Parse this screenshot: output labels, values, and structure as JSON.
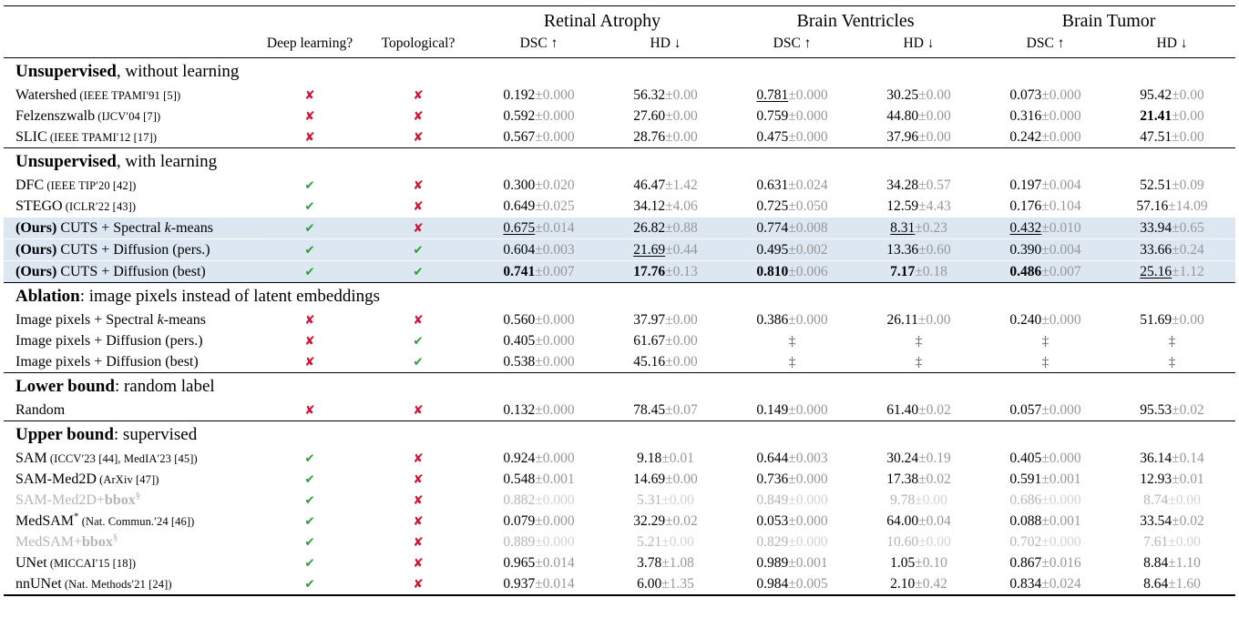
{
  "table": {
    "columns": {
      "deep_learning": "Deep learning?",
      "topological": "Topological?"
    },
    "groups": [
      "Retinal Atrophy",
      "Brain Ventricles",
      "Brain Tumor"
    ],
    "metrics": {
      "dsc": "DSC ↑",
      "hd": "HD ↓"
    },
    "marks": {
      "yes": "✔",
      "no": "✘",
      "na": "‡"
    },
    "colors": {
      "check_green": "#2f9e3a",
      "cross_red": "#ce1538",
      "highlight_blue": "#dce7f2",
      "muted_gray": "#b5b5b5",
      "error_gray": "#979797"
    },
    "sections": [
      {
        "title": [
          [
            "Unsupervised",
            "b"
          ],
          [
            ", without learning",
            ""
          ]
        ],
        "rows": [
          {
            "name": [
              [
                "Watershed",
                ""
              ]
            ],
            "cite": "(IEEE TPAMI′91 [5])",
            "dl": false,
            "topo": false,
            "cells": [
              [
                "0.192",
                "0.000",
                ""
              ],
              [
                "56.32",
                "0.00",
                ""
              ],
              [
                "0.781",
                "0.000",
                "u"
              ],
              [
                "30.25",
                "0.00",
                ""
              ],
              [
                "0.073",
                "0.000",
                ""
              ],
              [
                "95.42",
                "0.00",
                ""
              ]
            ]
          },
          {
            "name": [
              [
                "Felzenszwalb",
                ""
              ]
            ],
            "cite": "(IJCV′04 [7])",
            "dl": false,
            "topo": false,
            "cells": [
              [
                "0.592",
                "0.000",
                ""
              ],
              [
                "27.60",
                "0.00",
                ""
              ],
              [
                "0.759",
                "0.000",
                ""
              ],
              [
                "44.80",
                "0.00",
                ""
              ],
              [
                "0.316",
                "0.000",
                ""
              ],
              [
                "21.41",
                "0.00",
                "b"
              ]
            ]
          },
          {
            "name": [
              [
                "SLIC",
                ""
              ]
            ],
            "cite": "(IEEE TPAMI′12 [17])",
            "dl": false,
            "topo": false,
            "cells": [
              [
                "0.567",
                "0.000",
                ""
              ],
              [
                "28.76",
                "0.00",
                ""
              ],
              [
                "0.475",
                "0.000",
                ""
              ],
              [
                "37.96",
                "0.00",
                ""
              ],
              [
                "0.242",
                "0.000",
                ""
              ],
              [
                "47.51",
                "0.00",
                ""
              ]
            ]
          }
        ]
      },
      {
        "title": [
          [
            "Unsupervised",
            "b"
          ],
          [
            ", with learning",
            ""
          ]
        ],
        "rows": [
          {
            "name": [
              [
                "DFC",
                ""
              ]
            ],
            "cite": "(IEEE TIP′20 [42])",
            "dl": true,
            "topo": false,
            "cells": [
              [
                "0.300",
                "0.020",
                ""
              ],
              [
                "46.47",
                "1.42",
                ""
              ],
              [
                "0.631",
                "0.024",
                ""
              ],
              [
                "34.28",
                "0.57",
                ""
              ],
              [
                "0.197",
                "0.004",
                ""
              ],
              [
                "52.51",
                "0.09",
                ""
              ]
            ]
          },
          {
            "name": [
              [
                "STEGO",
                ""
              ]
            ],
            "cite": "(ICLR′22 [43])",
            "dl": true,
            "topo": false,
            "cells": [
              [
                "0.649",
                "0.025",
                ""
              ],
              [
                "34.12",
                "4.06",
                ""
              ],
              [
                "0.725",
                "0.050",
                ""
              ],
              [
                "12.59",
                "4.43",
                ""
              ],
              [
                "0.176",
                "0.104",
                ""
              ],
              [
                "57.16",
                "14.09",
                ""
              ]
            ]
          },
          {
            "name": [
              [
                "(Ours)",
                "b"
              ],
              [
                " CUTS + Spectral ",
                ""
              ],
              [
                "k",
                "i"
              ],
              [
                "-means",
                ""
              ]
            ],
            "cite": "",
            "dl": true,
            "topo": false,
            "highlight": true,
            "cells": [
              [
                "0.675",
                "0.014",
                "u"
              ],
              [
                "26.82",
                "0.88",
                ""
              ],
              [
                "0.774",
                "0.008",
                ""
              ],
              [
                "8.31",
                "0.23",
                "u"
              ],
              [
                "0.432",
                "0.010",
                "u"
              ],
              [
                "33.94",
                "0.65",
                ""
              ]
            ]
          },
          {
            "name": [
              [
                "(Ours)",
                "b"
              ],
              [
                " CUTS + Diffusion (pers.)",
                ""
              ]
            ],
            "cite": "",
            "dl": true,
            "topo": true,
            "highlight": true,
            "cells": [
              [
                "0.604",
                "0.003",
                ""
              ],
              [
                "21.69",
                "0.44",
                "u"
              ],
              [
                "0.495",
                "0.002",
                ""
              ],
              [
                "13.36",
                "0.60",
                ""
              ],
              [
                "0.390",
                "0.004",
                ""
              ],
              [
                "33.66",
                "0.24",
                ""
              ]
            ]
          },
          {
            "name": [
              [
                "(Ours)",
                "b"
              ],
              [
                " CUTS + Diffusion (best)",
                ""
              ]
            ],
            "cite": "",
            "dl": true,
            "topo": true,
            "highlight": true,
            "cells": [
              [
                "0.741",
                "0.007",
                "b"
              ],
              [
                "17.76",
                "0.13",
                "b"
              ],
              [
                "0.810",
                "0.006",
                "b"
              ],
              [
                "7.17",
                "0.18",
                "b"
              ],
              [
                "0.486",
                "0.007",
                "b"
              ],
              [
                "25.16",
                "1.12",
                "u"
              ]
            ]
          }
        ]
      },
      {
        "title": [
          [
            "Ablation",
            "b"
          ],
          [
            ": image pixels instead of latent embeddings",
            ""
          ]
        ],
        "rows": [
          {
            "name": [
              [
                "Image pixels + Spectral ",
                ""
              ],
              [
                "k",
                "i"
              ],
              [
                "-means",
                ""
              ]
            ],
            "cite": "",
            "dl": false,
            "topo": false,
            "cells": [
              [
                "0.560",
                "0.000",
                ""
              ],
              [
                "37.97",
                "0.00",
                ""
              ],
              [
                "0.386",
                "0.000",
                ""
              ],
              [
                "26.11",
                "0.00",
                ""
              ],
              [
                "0.240",
                "0.000",
                ""
              ],
              [
                "51.69",
                "0.00",
                ""
              ]
            ]
          },
          {
            "name": [
              [
                "Image pixels + Diffusion (pers.)",
                ""
              ]
            ],
            "cite": "",
            "dl": false,
            "topo": true,
            "cells": [
              [
                "0.405",
                "0.000",
                ""
              ],
              [
                "61.67",
                "0.00",
                ""
              ],
              [
                "‡",
                "",
                ""
              ],
              [
                "‡",
                "",
                ""
              ],
              [
                "‡",
                "",
                ""
              ],
              [
                "‡",
                "",
                ""
              ]
            ]
          },
          {
            "name": [
              [
                "Image pixels + Diffusion (best)",
                ""
              ]
            ],
            "cite": "",
            "dl": false,
            "topo": true,
            "cells": [
              [
                "0.538",
                "0.000",
                ""
              ],
              [
                "45.16",
                "0.00",
                ""
              ],
              [
                "‡",
                "",
                ""
              ],
              [
                "‡",
                "",
                ""
              ],
              [
                "‡",
                "",
                ""
              ],
              [
                "‡",
                "",
                ""
              ]
            ]
          }
        ]
      },
      {
        "title": [
          [
            "Lower bound",
            "b"
          ],
          [
            ": random label",
            ""
          ]
        ],
        "rows": [
          {
            "name": [
              [
                "Random",
                ""
              ]
            ],
            "cite": "",
            "dl": false,
            "topo": false,
            "cells": [
              [
                "0.132",
                "0.000",
                ""
              ],
              [
                "78.45",
                "0.07",
                ""
              ],
              [
                "0.149",
                "0.000",
                ""
              ],
              [
                "61.40",
                "0.02",
                ""
              ],
              [
                "0.057",
                "0.000",
                ""
              ],
              [
                "95.53",
                "0.02",
                ""
              ]
            ]
          }
        ]
      },
      {
        "title": [
          [
            "Upper bound",
            "b"
          ],
          [
            ": supervised",
            ""
          ]
        ],
        "rows": [
          {
            "name": [
              [
                "SAM",
                ""
              ]
            ],
            "cite": "(ICCV′23 [44], MedIA′23 [45])",
            "dl": true,
            "topo": false,
            "cells": [
              [
                "0.924",
                "0.000",
                ""
              ],
              [
                "9.18",
                "0.01",
                ""
              ],
              [
                "0.644",
                "0.003",
                ""
              ],
              [
                "30.24",
                "0.19",
                ""
              ],
              [
                "0.405",
                "0.000",
                ""
              ],
              [
                "36.14",
                "0.14",
                ""
              ]
            ]
          },
          {
            "name": [
              [
                "SAM-Med2D",
                ""
              ]
            ],
            "cite": "(ArXiv [47])",
            "dl": true,
            "topo": false,
            "cells": [
              [
                "0.548",
                "0.001",
                ""
              ],
              [
                "14.69",
                "0.00",
                ""
              ],
              [
                "0.736",
                "0.000",
                ""
              ],
              [
                "17.38",
                "0.02",
                ""
              ],
              [
                "0.591",
                "0.001",
                ""
              ],
              [
                "12.93",
                "0.01",
                ""
              ]
            ]
          },
          {
            "name": [
              [
                "SAM-Med2D+",
                ""
              ],
              [
                "bbox",
                "b"
              ]
            ],
            "sup": "§",
            "cite": "",
            "dl": true,
            "topo": false,
            "dim": true,
            "cells": [
              [
                "0.882",
                "0.000",
                ""
              ],
              [
                "5.31",
                "0.00",
                ""
              ],
              [
                "0.849",
                "0.000",
                ""
              ],
              [
                "9.78",
                "0.00",
                ""
              ],
              [
                "0.686",
                "0.000",
                ""
              ],
              [
                "8.74",
                "0.00",
                ""
              ]
            ]
          },
          {
            "name": [
              [
                "MedSAM",
                ""
              ]
            ],
            "sup": "*",
            "cite": "(Nat. Commun.′24 [46])",
            "dl": true,
            "topo": false,
            "cells": [
              [
                "0.079",
                "0.000",
                ""
              ],
              [
                "32.29",
                "0.02",
                ""
              ],
              [
                "0.053",
                "0.000",
                ""
              ],
              [
                "64.00",
                "0.04",
                ""
              ],
              [
                "0.088",
                "0.001",
                ""
              ],
              [
                "33.54",
                "0.02",
                ""
              ]
            ]
          },
          {
            "name": [
              [
                "MedSAM+",
                ""
              ],
              [
                "bbox",
                "b"
              ]
            ],
            "sup": "§",
            "cite": "",
            "dl": true,
            "topo": false,
            "dim": true,
            "cells": [
              [
                "0.889",
                "0.000",
                ""
              ],
              [
                "5.21",
                "0.00",
                ""
              ],
              [
                "0.829",
                "0.000",
                ""
              ],
              [
                "10.60",
                "0.00",
                ""
              ],
              [
                "0.702",
                "0.000",
                ""
              ],
              [
                "7.61",
                "0.00",
                ""
              ]
            ]
          },
          {
            "name": [
              [
                "UNet",
                ""
              ]
            ],
            "cite": "(MICCAI′15 [18])",
            "dl": true,
            "topo": false,
            "cells": [
              [
                "0.965",
                "0.014",
                ""
              ],
              [
                "3.78",
                "1.08",
                ""
              ],
              [
                "0.989",
                "0.001",
                ""
              ],
              [
                "1.05",
                "0.10",
                ""
              ],
              [
                "0.867",
                "0.016",
                ""
              ],
              [
                "8.84",
                "1.10",
                ""
              ]
            ]
          },
          {
            "name": [
              [
                "nnUNet",
                ""
              ]
            ],
            "cite": "(Nat. Methods′21 [24])",
            "dl": true,
            "topo": false,
            "cells": [
              [
                "0.937",
                "0.014",
                ""
              ],
              [
                "6.00",
                "1.35",
                ""
              ],
              [
                "0.984",
                "0.005",
                ""
              ],
              [
                "2.10",
                "0.42",
                ""
              ],
              [
                "0.834",
                "0.024",
                ""
              ],
              [
                "8.64",
                "1.60",
                ""
              ]
            ]
          }
        ]
      }
    ]
  }
}
